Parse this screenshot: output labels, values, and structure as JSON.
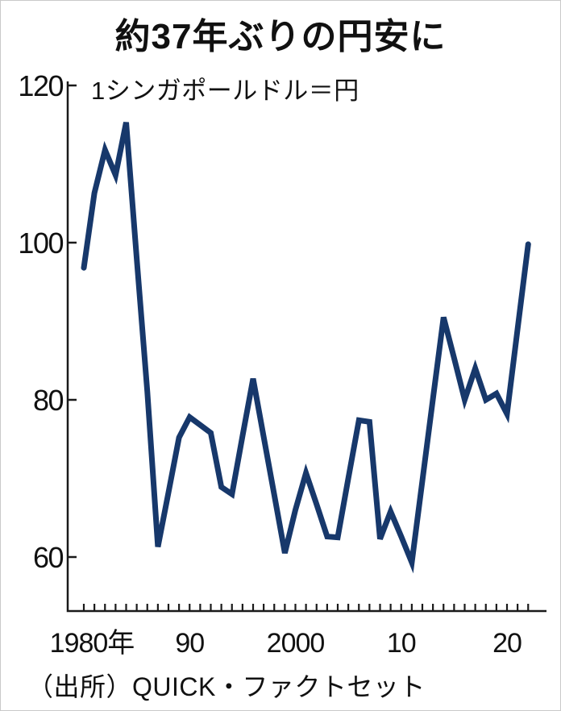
{
  "page": {
    "title": "約37年ぶりの円安に",
    "source": "（出所）QUICK・ファクトセット"
  },
  "chart_data": {
    "type": "line",
    "title": "約37年ぶりの円安に",
    "unit_note": "1シンガポールドル＝円",
    "series_label": "1シンガポールドル＝円 (SGD/JPY)",
    "years": [
      1980,
      1981,
      1982,
      1983,
      1984,
      1985,
      1986,
      1987,
      1988,
      1989,
      1990,
      1991,
      1992,
      1993,
      1994,
      1995,
      1996,
      1997,
      1998,
      1999,
      2000,
      2001,
      2002,
      2003,
      2004,
      2005,
      2006,
      2007,
      2008,
      2009,
      2010,
      2011,
      2012,
      2013,
      2014,
      2015,
      2016,
      2017,
      2018,
      2019,
      2020,
      2021,
      2022
    ],
    "values": [
      96.8,
      106.3,
      111.8,
      108.6,
      115.3,
      98.0,
      81.0,
      61.3,
      68.2,
      75.2,
      77.8,
      76.8,
      75.8,
      68.9,
      68.0,
      75.4,
      82.7,
      75.3,
      67.9,
      60.5,
      66.0,
      70.7,
      66.7,
      62.6,
      62.5,
      70.0,
      77.4,
      77.2,
      62.3,
      65.8,
      62.6,
      59.3,
      69.7,
      80.1,
      90.5,
      85.3,
      80.0,
      84.0,
      80.0,
      80.8,
      78.2,
      89.0,
      99.8
    ],
    "y_ticks": [
      120,
      100,
      80,
      60
    ],
    "x_tick_labels": [
      {
        "year": 1980,
        "label": "1980年"
      },
      {
        "year": 1990,
        "label": "90"
      },
      {
        "year": 2000,
        "label": "2000"
      },
      {
        "year": 2010,
        "label": "10"
      },
      {
        "year": 2020,
        "label": "20"
      }
    ],
    "ylim": [
      53,
      122
    ],
    "xlim": [
      1980,
      2023.5
    ],
    "grid": false,
    "legend_position": "none",
    "source": "（出所）QUICK・ファクトセット"
  },
  "colors": {
    "line": "#17386b",
    "axis": "#1a1a1a",
    "text": "#111111",
    "background": "#ffffff",
    "frame_border": "#c9c9c9"
  }
}
